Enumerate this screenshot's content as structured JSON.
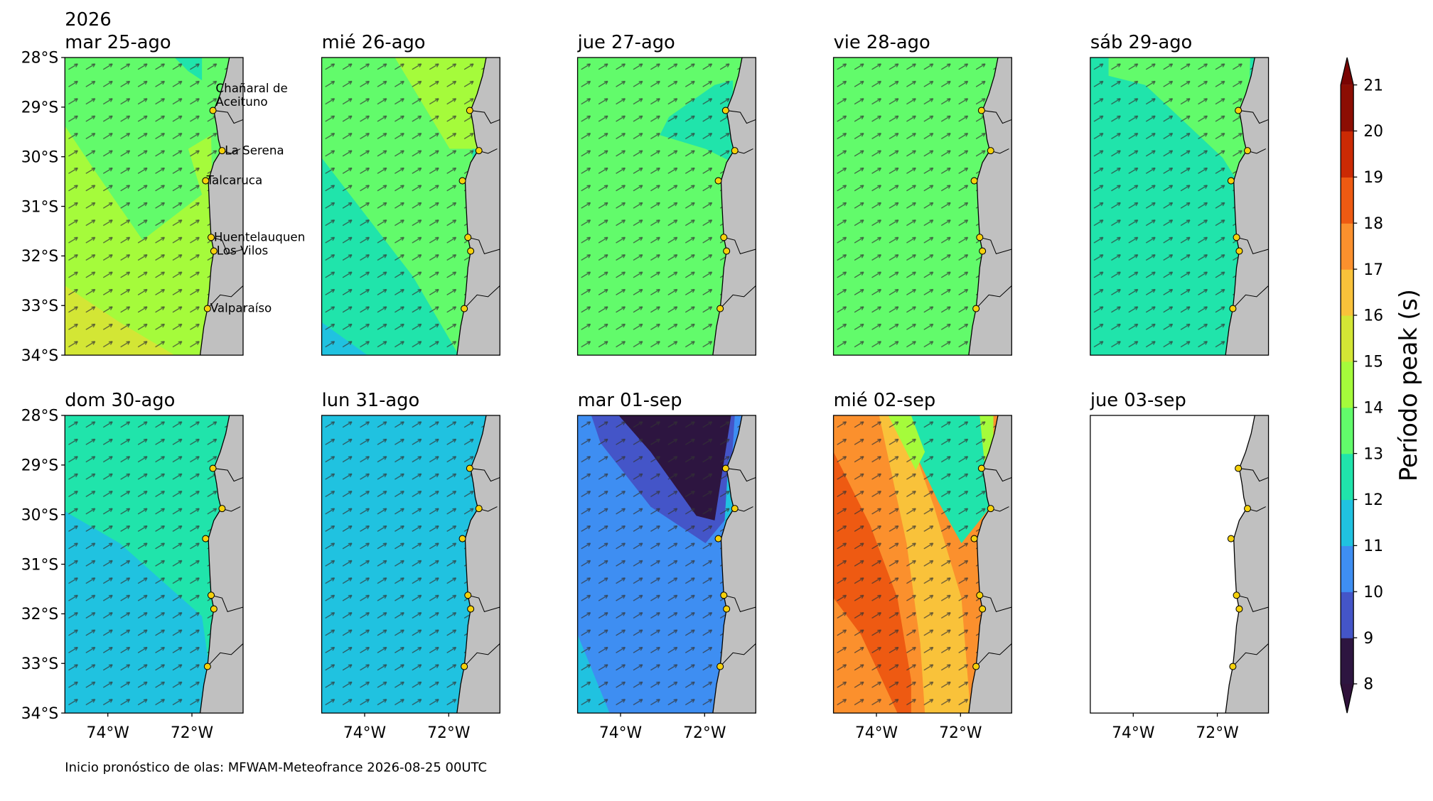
{
  "year": "2026",
  "panels": [
    {
      "title": "mar 25-ago"
    },
    {
      "title": "mié 26-ago"
    },
    {
      "title": "jue 27-ago"
    },
    {
      "title": "vie 28-ago"
    },
    {
      "title": "sáb 29-ago"
    },
    {
      "title": "dom 30-ago"
    },
    {
      "title": "lun 31-ago"
    },
    {
      "title": "mar 01-sep"
    },
    {
      "title": "mié 02-sep"
    },
    {
      "title": "jue 03-sep"
    }
  ],
  "lat_labels": [
    "28°S",
    "29°S",
    "30°S",
    "31°S",
    "32°S",
    "33°S",
    "34°S"
  ],
  "lon_labels": [
    "74°W",
    "72°W"
  ],
  "places": [
    "Chañaral de\nAceituno",
    "La Serena",
    "Talcaruca",
    "Huentelauquen",
    "Los Vilos",
    "Valparaíso"
  ],
  "colorbar": {
    "label": "Período peak (s)",
    "ticks": [
      8,
      9,
      10,
      11,
      12,
      13,
      14,
      15,
      16,
      17,
      18,
      19,
      20,
      21
    ]
  },
  "footer": "Inicio pronóstico de olas: MFWAM-Meteofrance 2026-08-25 00UTC"
}
